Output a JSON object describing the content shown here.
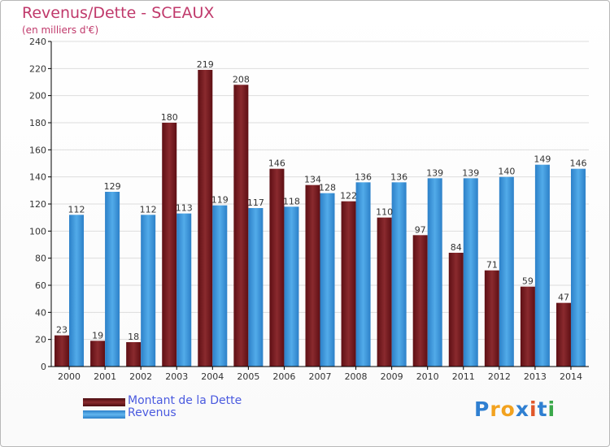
{
  "header": {
    "title": "Revenus/Dette - SCEAUX",
    "subtitle": "(en milliers d'€)"
  },
  "colors": {
    "title": "#c0396b",
    "dette": "#7a1f23",
    "revenus": "#3a97dc",
    "legend_text": "#4a5adf",
    "axis": "#000000",
    "grid": "#dddddd"
  },
  "chart_data": {
    "type": "bar",
    "title": "Revenus/Dette - SCEAUX",
    "subtitle": "(en milliers d'€)",
    "categories": [
      "2000",
      "2001",
      "2002",
      "2003",
      "2004",
      "2005",
      "2006",
      "2007",
      "2008",
      "2009",
      "2010",
      "2011",
      "2012",
      "2013",
      "2014"
    ],
    "series": [
      {
        "name": "Montant de la Dette",
        "values": [
          23,
          19,
          18,
          180,
          219,
          208,
          146,
          134,
          122,
          110,
          97,
          84,
          71,
          59,
          47
        ]
      },
      {
        "name": "Revenus",
        "values": [
          112,
          129,
          112,
          113,
          119,
          117,
          118,
          128,
          136,
          136,
          139,
          139,
          140,
          149,
          146
        ]
      }
    ],
    "ylim": [
      0,
      240
    ],
    "yticks": [
      0,
      20,
      40,
      60,
      80,
      100,
      120,
      140,
      160,
      180,
      200,
      220,
      240
    ],
    "grid": true,
    "legend": "bottom-left",
    "xlabel": "",
    "ylabel": ""
  },
  "legend": {
    "items": [
      {
        "label": "Montant de la Dette"
      },
      {
        "label": "Revenus"
      }
    ]
  },
  "logo": {
    "letters": [
      "P",
      "r",
      "o",
      "x",
      "i",
      "t",
      "i"
    ],
    "colors": [
      "#2f7fd1",
      "#f2a21f",
      "#f2a21f",
      "#2f7fd1",
      "#e0572a",
      "#2f7fd1",
      "#3aa84a"
    ]
  }
}
